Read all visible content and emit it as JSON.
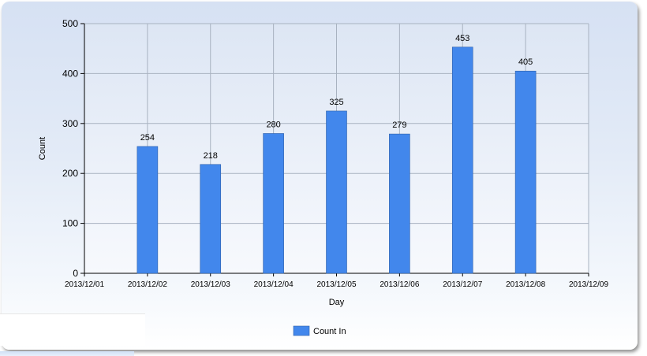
{
  "chart_data": {
    "type": "bar",
    "x_ticks": [
      "2013/12/01",
      "2013/12/02",
      "2013/12/03",
      "2013/12/04",
      "2013/12/05",
      "2013/12/06",
      "2013/12/07",
      "2013/12/08",
      "2013/12/09"
    ],
    "series": [
      {
        "name": "Count In",
        "color": "#4287ec",
        "points": [
          {
            "x": "2013/12/02",
            "y": 254
          },
          {
            "x": "2013/12/03",
            "y": 218
          },
          {
            "x": "2013/12/04",
            "y": 280
          },
          {
            "x": "2013/12/05",
            "y": 325
          },
          {
            "x": "2013/12/06",
            "y": 279
          },
          {
            "x": "2013/12/07",
            "y": 453
          },
          {
            "x": "2013/12/08",
            "y": 405
          }
        ]
      }
    ],
    "xlabel": "Day",
    "ylabel": "Count",
    "ylim": [
      0,
      500
    ],
    "yticks": [
      "0",
      "100",
      "200",
      "300",
      "400",
      "500"
    ],
    "grid": true,
    "legend_position": "bottom-center",
    "show_data_labels": true
  },
  "overlay": {
    "bottom_left_text": ")"
  }
}
